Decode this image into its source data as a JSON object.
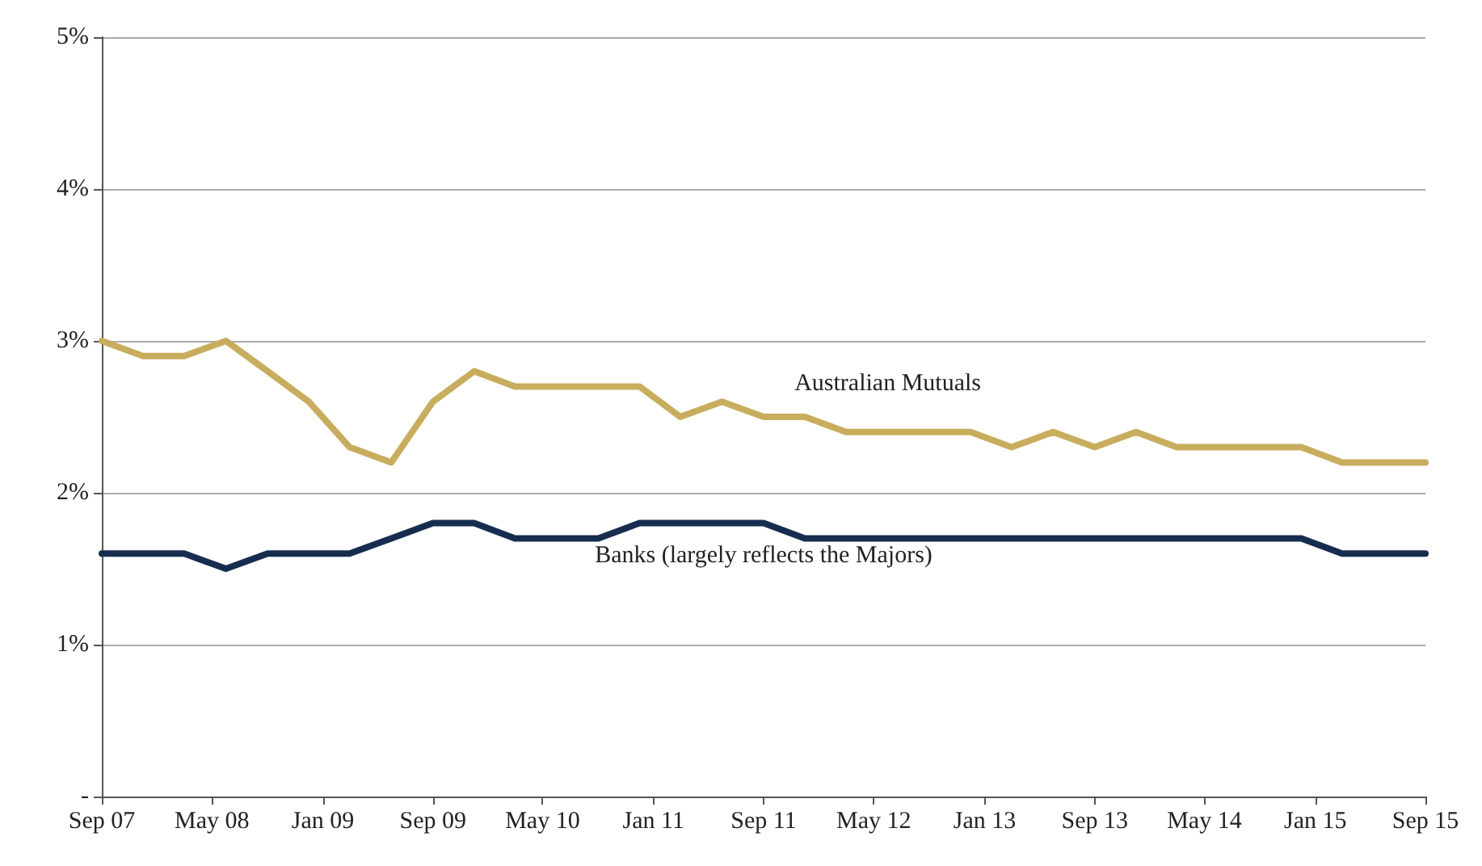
{
  "chart_data": {
    "type": "line",
    "x": [
      "2007-09",
      "2007-12",
      "2008-03",
      "2008-06",
      "2008-09",
      "2008-12",
      "2009-03",
      "2009-06",
      "2009-09",
      "2009-12",
      "2010-03",
      "2010-06",
      "2010-09",
      "2010-12",
      "2011-03",
      "2011-06",
      "2011-09",
      "2011-12",
      "2012-03",
      "2012-06",
      "2012-09",
      "2012-12",
      "2013-03",
      "2013-06",
      "2013-09",
      "2013-12",
      "2014-03",
      "2014-06",
      "2014-09",
      "2014-12",
      "2015-03",
      "2015-06",
      "2015-09"
    ],
    "series": [
      {
        "name": "Australian Mutuals",
        "color": "#c8ad5e",
        "values": [
          3.0,
          2.9,
          2.9,
          3.0,
          2.8,
          2.6,
          2.3,
          2.2,
          2.6,
          2.8,
          2.7,
          2.7,
          2.7,
          2.7,
          2.5,
          2.6,
          2.5,
          2.5,
          2.4,
          2.4,
          2.4,
          2.4,
          2.3,
          2.4,
          2.3,
          2.4,
          2.3,
          2.3,
          2.3,
          2.3,
          2.2,
          2.2,
          2.2
        ]
      },
      {
        "name": "Banks (largely reflects the Majors)",
        "color": "#172d4f",
        "values": [
          1.6,
          1.6,
          1.6,
          1.5,
          1.6,
          1.6,
          1.6,
          1.7,
          1.8,
          1.8,
          1.7,
          1.7,
          1.7,
          1.8,
          1.8,
          1.8,
          1.8,
          1.7,
          1.7,
          1.7,
          1.7,
          1.7,
          1.7,
          1.7,
          1.7,
          1.7,
          1.7,
          1.7,
          1.7,
          1.7,
          1.6,
          1.6,
          1.6
        ]
      }
    ],
    "xlim": [
      "2007-09",
      "2015-09"
    ],
    "xticks": [
      {
        "value": "2007-09",
        "label": "Sep 07"
      },
      {
        "value": "2008-05",
        "label": "May 08"
      },
      {
        "value": "2009-01",
        "label": "Jan 09"
      },
      {
        "value": "2009-09",
        "label": "Sep 09"
      },
      {
        "value": "2010-05",
        "label": "May 10"
      },
      {
        "value": "2011-01",
        "label": "Jan 11"
      },
      {
        "value": "2011-09",
        "label": "Sep 11"
      },
      {
        "value": "2012-05",
        "label": "May 12"
      },
      {
        "value": "2013-01",
        "label": "Jan 13"
      },
      {
        "value": "2013-09",
        "label": "Sep 13"
      },
      {
        "value": "2014-05",
        "label": "May 14"
      },
      {
        "value": "2015-01",
        "label": "Jan 15"
      },
      {
        "value": "2015-09",
        "label": "Sep 15"
      }
    ],
    "ylim": [
      0,
      5
    ],
    "yticks": [
      {
        "value": 0,
        "label": "-"
      },
      {
        "value": 1,
        "label": "1%"
      },
      {
        "value": 2,
        "label": "2%"
      },
      {
        "value": 3,
        "label": "3%"
      },
      {
        "value": 4,
        "label": "4%"
      },
      {
        "value": 5,
        "label": "5%"
      }
    ],
    "grid": "y",
    "marker": "none",
    "line_style": "solid"
  }
}
